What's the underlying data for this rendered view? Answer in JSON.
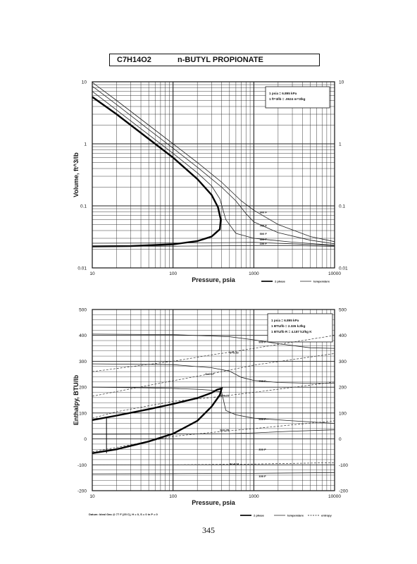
{
  "header": {
    "formula": "C7H14O2",
    "compound": "n-BUTYL PROPIONATE"
  },
  "page_number": "345",
  "chart_data": [
    {
      "type": "line",
      "xscale": "log",
      "yscale": "log",
      "xlim": [
        10,
        10000
      ],
      "ylim": [
        0.01,
        10
      ],
      "xlabel": "Pressure,  psia",
      "ylabel": "Volume, ft^3/lb",
      "x_ticks": [
        "10",
        "100",
        "1000",
        "10000"
      ],
      "y_ticks": [
        "0.01",
        "0.1",
        "1",
        "10"
      ],
      "notes": [
        "1 psia = 6.895 kPa",
        "1 ft^3/lb = .0624 m^3/kg"
      ],
      "legend": [
        "2 phase",
        "temperature"
      ],
      "series": [
        {
          "name": "2 phase",
          "style": "heavy",
          "points": [
            [
              10,
              5.7
            ],
            [
              20,
              3.0
            ],
            [
              50,
              1.2
            ],
            [
              100,
              0.6
            ],
            [
              200,
              0.27
            ],
            [
              300,
              0.15
            ],
            [
              360,
              0.095
            ],
            [
              390,
              0.06
            ],
            [
              380,
              0.042
            ],
            [
              300,
              0.032
            ],
            [
              200,
              0.027
            ],
            [
              100,
              0.024
            ],
            [
              30,
              0.0225
            ],
            [
              10,
              0.0222
            ]
          ]
        },
        {
          "name": "900 F",
          "label_at": [
            1180,
            0.0755
          ],
          "points": [
            [
              10,
              9.8
            ],
            [
              20,
              5.0
            ],
            [
              50,
              2.0
            ],
            [
              100,
              1.0
            ],
            [
              200,
              0.5
            ],
            [
              400,
              0.24
            ],
            [
              700,
              0.12
            ],
            [
              1000,
              0.085
            ],
            [
              2000,
              0.05
            ],
            [
              5000,
              0.032
            ],
            [
              10000,
              0.0265
            ]
          ]
        },
        {
          "name": "700 F",
          "label_at": [
            1180,
            0.0465
          ],
          "points": [
            [
              10,
              8.5
            ],
            [
              20,
              4.3
            ],
            [
              50,
              1.7
            ],
            [
              100,
              0.85
            ],
            [
              200,
              0.42
            ],
            [
              400,
              0.2
            ],
            [
              600,
              0.12
            ],
            [
              800,
              0.075
            ],
            [
              1000,
              0.055
            ],
            [
              2000,
              0.037
            ],
            [
              5000,
              0.028
            ],
            [
              10000,
              0.0245
            ]
          ]
        },
        {
          "name": "500 F",
          "label_at": [
            1180,
            0.0342
          ],
          "points": [
            [
              10,
              7.0
            ],
            [
              20,
              3.5
            ],
            [
              50,
              1.4
            ],
            [
              100,
              0.7
            ],
            [
              200,
              0.34
            ],
            [
              300,
              0.21
            ],
            [
              380,
              0.13
            ],
            [
              450,
              0.06
            ],
            [
              600,
              0.036
            ],
            [
              1000,
              0.03
            ],
            [
              3000,
              0.026
            ],
            [
              10000,
              0.0232
            ]
          ]
        },
        {
          "name": "300 F",
          "label_at": [
            1180,
            0.0276
          ],
          "points": [
            [
              10,
              0.025
            ],
            [
              100,
              0.0252
            ],
            [
              500,
              0.0256
            ],
            [
              1000,
              0.0258
            ],
            [
              3000,
              0.0245
            ],
            [
              10000,
              0.0228
            ]
          ]
        },
        {
          "name": "100 F",
          "label_at": [
            1180,
            0.0238
          ],
          "points": [
            [
              10,
              0.0223
            ],
            [
              100,
              0.0224
            ],
            [
              1000,
              0.0229
            ],
            [
              3000,
              0.0229
            ],
            [
              10000,
              0.0222
            ]
          ]
        }
      ]
    },
    {
      "type": "line",
      "xscale": "log",
      "yscale": "linear",
      "xlim": [
        10,
        10000
      ],
      "ylim": [
        -200,
        500
      ],
      "xlabel": "Pressure,  psia",
      "ylabel": "Enthalpy, BTU/lb",
      "x_ticks": [
        "10",
        "100",
        "1000",
        "10000"
      ],
      "y_ticks": [
        "-200",
        "-100",
        "0",
        "100",
        "200",
        "300",
        "400",
        "500"
      ],
      "notes": [
        "1 psia = 6.895 kPa",
        "1 BTU/lb = 2.326 kJ/kg",
        "1 BTU/lb R = 4.187 kJ/kg K"
      ],
      "legend": [
        "2 phase",
        "temperature",
        "entropy"
      ],
      "footnote": "Datum: Ideal Gas @ 77 F (25 C), H = 0, S = 0 in P = 0",
      "dome": {
        "points": [
          [
            10,
            73
          ],
          [
            20,
            90
          ],
          [
            50,
            115
          ],
          [
            100,
            135
          ],
          [
            200,
            158
          ],
          [
            300,
            178
          ],
          [
            350,
            190
          ],
          [
            400,
            195
          ],
          [
            380,
            170
          ],
          [
            300,
            125
          ],
          [
            200,
            70
          ],
          [
            100,
            20
          ],
          [
            50,
            -10
          ],
          [
            20,
            -40
          ],
          [
            10,
            -55
          ]
        ]
      },
      "tie_line": {
        "x": 15,
        "y": [
          -55,
          82
        ]
      },
      "series": [
        {
          "name": "900 F",
          "style": "temperature",
          "label_at": [
            1150,
            370
          ],
          "points": [
            [
              10,
              405
            ],
            [
              100,
              403
            ],
            [
              500,
              395
            ],
            [
              1000,
              383
            ],
            [
              2000,
              368
            ],
            [
              5000,
              352
            ],
            [
              10000,
              350
            ]
          ]
        },
        {
          "name": "700 F",
          "style": "temperature",
          "label_at": [
            1150,
            220
          ],
          "points": [
            [
              10,
              290
            ],
            [
              100,
              287
            ],
            [
              300,
              275
            ],
            [
              500,
              262
            ],
            [
              700,
              238
            ],
            [
              1000,
              226
            ],
            [
              2000,
              218
            ],
            [
              5000,
              215
            ],
            [
              10000,
              215
            ]
          ]
        },
        {
          "name": "500 F",
          "style": "temperature",
          "label_at": [
            1150,
            72
          ],
          "points": [
            [
              10,
              200
            ],
            [
              50,
              197
            ],
            [
              100,
              195
            ],
            [
              200,
              192
            ],
            [
              300,
              188
            ],
            [
              400,
              180
            ],
            [
              450,
              110
            ],
            [
              600,
              93
            ],
            [
              1000,
              80
            ],
            [
              3000,
              70
            ],
            [
              10000,
              60
            ]
          ]
        },
        {
          "name": "300 F",
          "style": "temperature",
          "label_at": [
            1150,
            -45
          ],
          "points": [
            [
              10,
              18
            ],
            [
              100,
              19
            ],
            [
              500,
              20
            ],
            [
              1000,
              23
            ],
            [
              3000,
              30
            ],
            [
              10000,
              35
            ]
          ]
        },
        {
          "name": "100 F",
          "style": "temperature",
          "label_at": [
            1150,
            -148
          ],
          "points": [
            [
              10,
              -135
            ],
            [
              100,
              -134
            ],
            [
              1000,
              -133
            ],
            [
              10000,
              -130
            ]
          ]
        },
        {
          "name": "S=0.33",
          "style": "entropy",
          "label_at": [
            500,
            330
          ],
          "points": [
            [
              10,
              260
            ],
            [
              100,
              300
            ],
            [
              300,
              325
            ],
            [
              500,
              335
            ],
            [
              1000,
              350
            ],
            [
              10000,
              400
            ]
          ]
        },
        {
          "name": "S=0.27",
          "style": "entropy",
          "label_at": [
            250,
            247
          ],
          "points": [
            [
              10,
              165
            ],
            [
              100,
              225
            ],
            [
              200,
              242
            ],
            [
              400,
              260
            ],
            [
              1000,
              285
            ],
            [
              10000,
              330
            ]
          ]
        },
        {
          "name": "S=0.21",
          "style": "entropy",
          "label_at": [
            380,
            163
          ],
          "points": [
            [
              10,
              80
            ],
            [
              20,
              105
            ],
            [
              50,
              128
            ],
            [
              100,
              145
            ],
            [
              300,
              160
            ],
            [
              1000,
              180
            ],
            [
              10000,
              220
            ]
          ]
        },
        {
          "name": "S=0.05",
          "style": "entropy",
          "label_at": [
            380,
            30
          ],
          "points": [
            [
              10,
              -50
            ],
            [
              50,
              -10
            ],
            [
              100,
              10
            ],
            [
              300,
              25
            ],
            [
              1000,
              40
            ],
            [
              10000,
              70
            ]
          ]
        },
        {
          "name": "S=-0.11",
          "style": "entropy",
          "label_at": [
            500,
            -100
          ],
          "points": [
            [
              10,
              -100
            ],
            [
              100,
              -100
            ],
            [
              1000,
              -97
            ],
            [
              10000,
              -92
            ]
          ]
        }
      ]
    }
  ]
}
